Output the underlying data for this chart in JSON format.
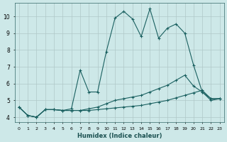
{
  "xlabel": "Humidex (Indice chaleur)",
  "background_color": "#cde8e8",
  "grid_color": "#b0c8c8",
  "line_color": "#1a6060",
  "ylim": [
    3.7,
    10.8
  ],
  "xlim": [
    -0.5,
    23.5
  ],
  "yticks": [
    4,
    5,
    6,
    7,
    8,
    9,
    10
  ],
  "xticks": [
    0,
    1,
    2,
    3,
    4,
    5,
    6,
    7,
    8,
    9,
    10,
    11,
    12,
    13,
    14,
    15,
    16,
    17,
    18,
    19,
    20,
    21,
    22,
    23
  ],
  "series": [
    {
      "x": [
        0,
        1,
        2,
        3,
        4,
        5,
        6,
        7,
        8,
        9,
        10,
        11,
        12,
        13,
        14,
        15,
        16,
        17,
        18,
        19,
        20,
        21,
        22,
        23
      ],
      "y": [
        4.6,
        4.1,
        4.0,
        4.45,
        4.45,
        4.4,
        4.4,
        4.4,
        4.4,
        4.45,
        4.5,
        4.55,
        4.6,
        4.65,
        4.7,
        4.8,
        4.9,
        5.0,
        5.15,
        5.3,
        5.45,
        5.6,
        5.1,
        5.1
      ]
    },
    {
      "x": [
        0,
        1,
        2,
        3,
        4,
        5,
        6,
        7,
        8,
        9,
        10,
        11,
        12,
        13,
        14,
        15,
        16,
        17,
        18,
        19,
        20,
        21,
        22,
        23
      ],
      "y": [
        4.6,
        4.1,
        4.0,
        4.45,
        4.45,
        4.4,
        4.4,
        4.4,
        4.5,
        4.6,
        4.8,
        5.0,
        5.1,
        5.2,
        5.3,
        5.5,
        5.7,
        5.9,
        6.2,
        6.5,
        5.85,
        5.5,
        5.1,
        5.1
      ]
    },
    {
      "x": [
        0,
        1,
        2,
        3,
        4,
        5,
        6,
        7,
        8,
        9,
        10,
        11,
        12,
        13,
        14,
        15,
        16,
        17,
        18,
        19,
        20,
        21,
        22,
        23
      ],
      "y": [
        4.6,
        4.1,
        4.0,
        4.45,
        4.45,
        4.4,
        4.5,
        6.8,
        5.5,
        5.5,
        7.9,
        9.9,
        10.3,
        9.85,
        8.8,
        10.45,
        8.7,
        9.3,
        9.55,
        9.0,
        7.1,
        5.5,
        5.0,
        5.1
      ]
    }
  ]
}
